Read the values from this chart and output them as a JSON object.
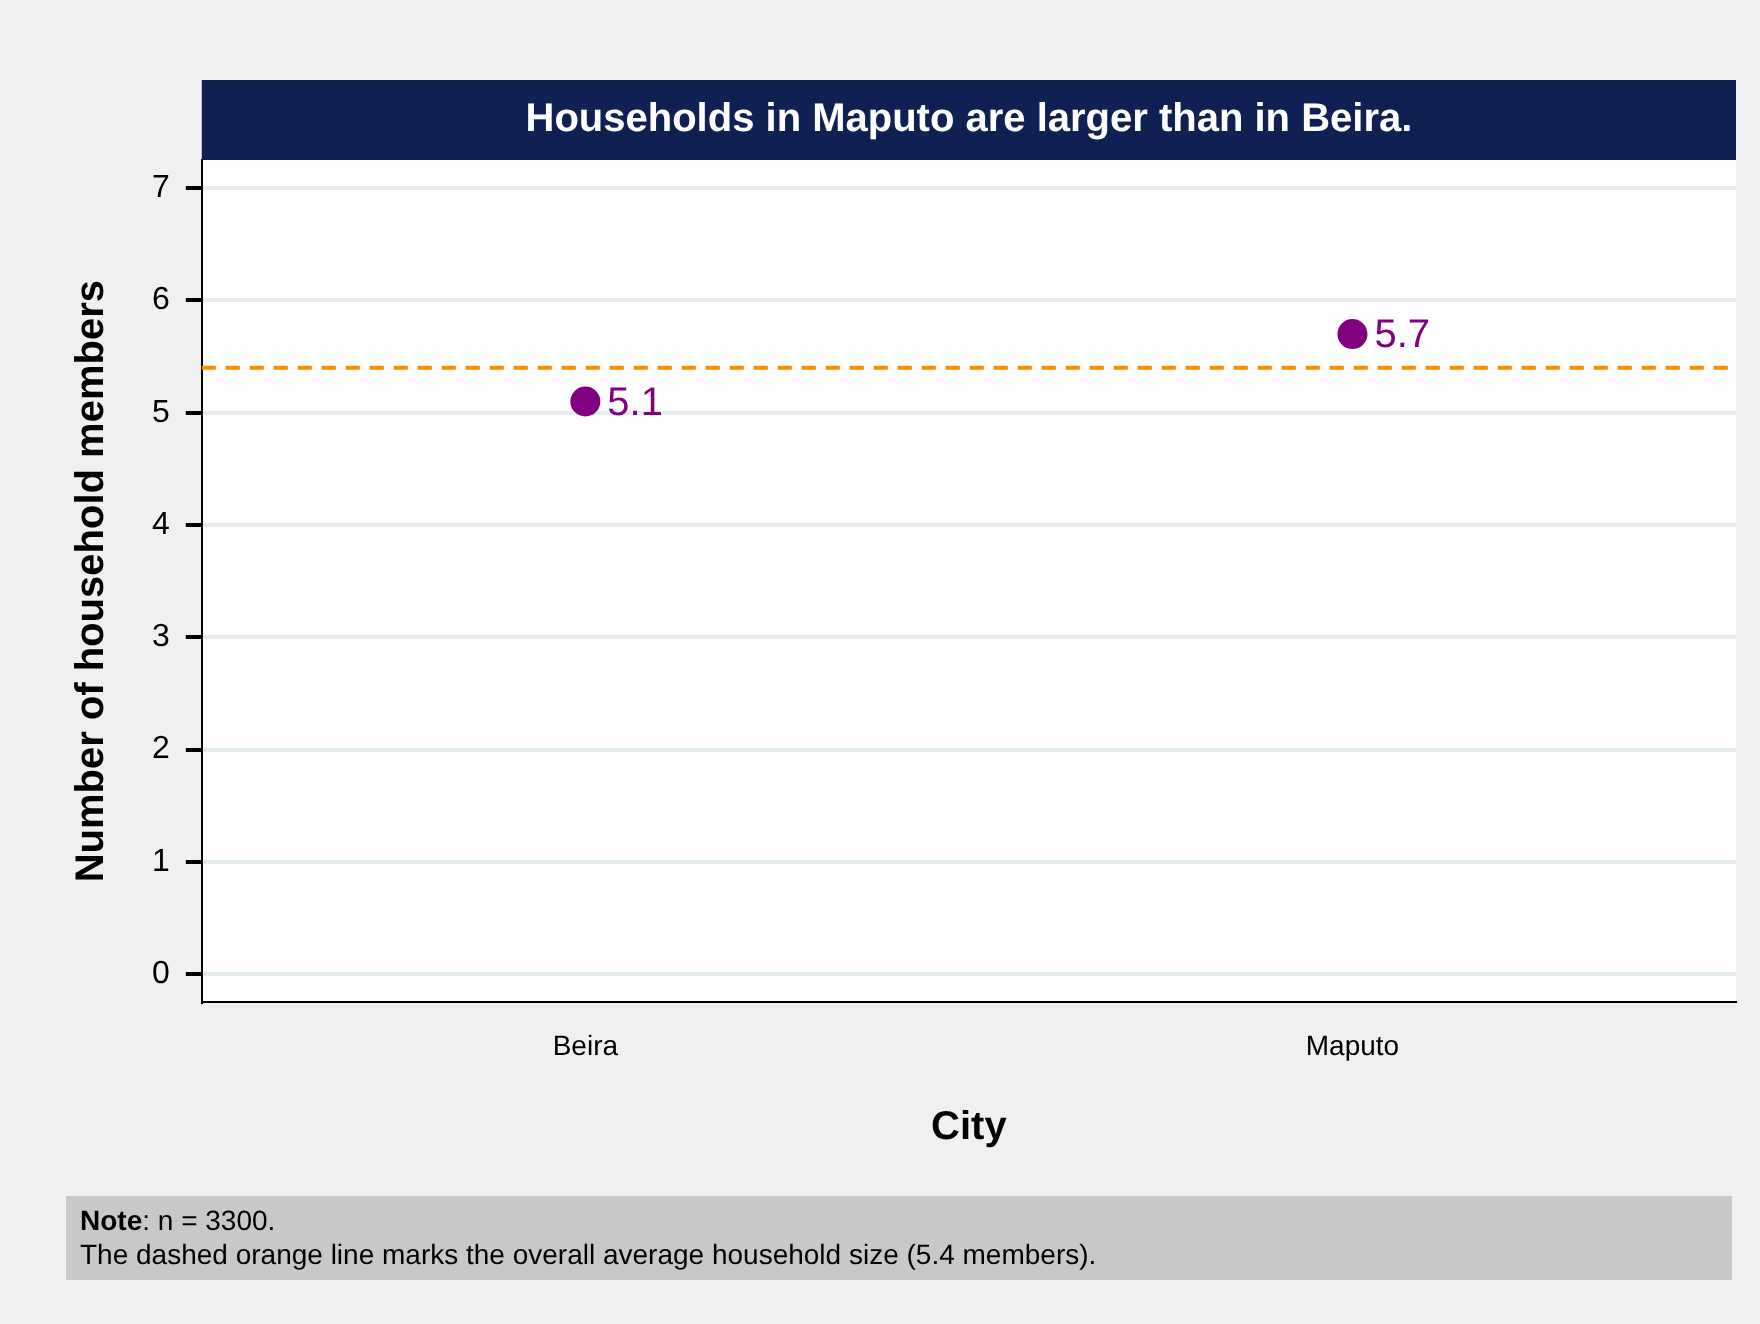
{
  "chart_data": {
    "type": "scatter",
    "title": "Households in Maputo are larger than in Beira.",
    "xlabel": "City",
    "ylabel": "Number of household members",
    "categories": [
      "Beira",
      "Maputo"
    ],
    "series": [
      {
        "color": "#800080",
        "values": [
          5.1,
          5.7
        ]
      }
    ],
    "data_labels": true,
    "marker": "circle",
    "ylim": [
      -0.25,
      7.25
    ],
    "yticks": [
      0,
      1,
      2,
      3,
      4,
      5,
      6,
      7
    ],
    "grid": "y",
    "legend": false,
    "ref_lines": [
      {
        "axis": "y",
        "value": 5.4,
        "color": "#ff8c00",
        "line_style": "dashed"
      }
    ],
    "annotations": [
      "Note: n = 3300.",
      "The dashed orange line marks the overall average household size (5.4 members)."
    ]
  }
}
